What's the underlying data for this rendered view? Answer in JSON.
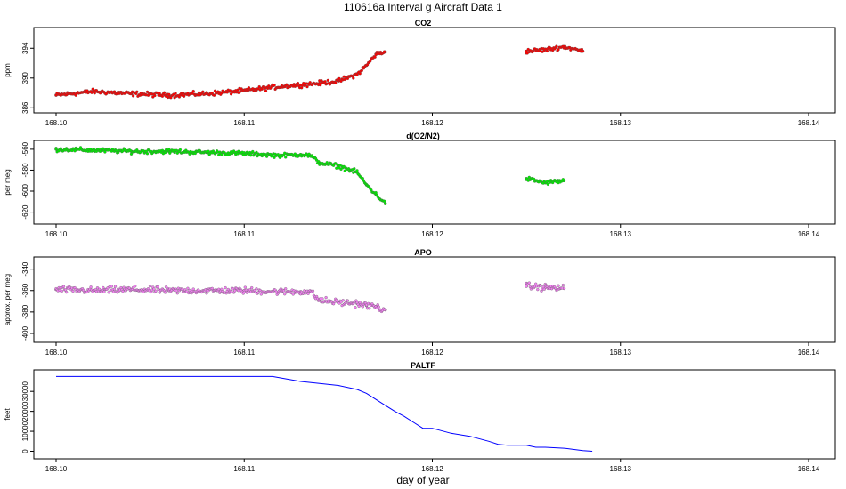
{
  "title": "110616a   Interval g Aircraft Data 1",
  "xlabel": "day of year",
  "x_ticks": [
    "168.10",
    "168.11",
    "168.12",
    "168.13",
    "168.14"
  ],
  "chart_data": [
    {
      "type": "scatter",
      "title": "CO2",
      "ylabel": "ppm",
      "xlim": [
        168.1,
        168.14
      ],
      "ylim": [
        385.8,
        396.3
      ],
      "y_ticks": [
        "386",
        "390",
        "394"
      ],
      "color": "#ff0000",
      "x": [
        168.1,
        168.102,
        168.104,
        168.106,
        168.108,
        168.11,
        168.112,
        168.114,
        168.115,
        168.116,
        168.1165,
        168.117,
        168.1175,
        168.125,
        168.126,
        168.127,
        168.128
      ],
      "values": [
        387.7,
        388.2,
        387.9,
        387.7,
        387.9,
        388.3,
        388.9,
        389.3,
        389.6,
        390.5,
        391.7,
        393.2,
        393.5,
        393.6,
        393.8,
        394.2,
        393.6
      ]
    },
    {
      "type": "scatter",
      "title": "d(O2/N2)",
      "ylabel": "per meg",
      "xlim": [
        168.1,
        168.14
      ],
      "ylim": [
        -628,
        -555
      ],
      "y_ticks": [
        "-620",
        "-600",
        "-580",
        "-560"
      ],
      "color": "#00ee00",
      "x": [
        168.1,
        168.102,
        168.104,
        168.106,
        168.108,
        168.11,
        168.111,
        168.112,
        168.113,
        168.1135,
        168.114,
        168.115,
        168.116,
        168.1165,
        168.117,
        168.1175,
        168.125,
        168.126,
        168.127
      ],
      "values": [
        -560,
        -561,
        -562,
        -562,
        -563,
        -564,
        -565,
        -566,
        -565,
        -566,
        -573,
        -576,
        -582,
        -594,
        -603,
        -612,
        -588,
        -592,
        -590
      ]
    },
    {
      "type": "scatter",
      "title": "APO",
      "ylabel": "approx. per meg",
      "xlim": [
        168.1,
        168.14
      ],
      "ylim": [
        -405,
        -332
      ],
      "y_ticks": [
        "-400",
        "-380",
        "-360",
        "-340"
      ],
      "color": "#ee82ee",
      "x": [
        168.1,
        168.102,
        168.104,
        168.106,
        168.108,
        168.11,
        168.112,
        168.113,
        168.1135,
        168.114,
        168.115,
        168.116,
        168.1165,
        168.117,
        168.1175,
        168.125,
        168.126,
        168.127
      ],
      "values": [
        -359,
        -360,
        -359,
        -360,
        -360,
        -360,
        -361,
        -361,
        -361,
        -369,
        -371,
        -372,
        -374,
        -375,
        -378,
        -356,
        -357,
        -358
      ]
    },
    {
      "type": "line",
      "title": "PALTF",
      "ylabel": "feet",
      "xlim": [
        168.1,
        168.14
      ],
      "ylim": [
        -2000,
        39000
      ],
      "y_ticks": [
        "0",
        "10000",
        "20000",
        "30000"
      ],
      "color": "#0000ff",
      "x": [
        168.1,
        168.105,
        168.1115,
        168.113,
        168.114,
        168.115,
        168.116,
        168.1165,
        168.117,
        168.1175,
        168.118,
        168.1185,
        168.119,
        168.1195,
        168.12,
        168.121,
        168.122,
        168.123,
        168.1235,
        168.124,
        168.125,
        168.1255,
        168.126,
        168.127,
        168.128,
        168.1285
      ],
      "values": [
        37500,
        37500,
        37500,
        35000,
        34000,
        33000,
        31000,
        29000,
        26000,
        23000,
        20000,
        17500,
        14500,
        11500,
        11500,
        9000,
        7500,
        5000,
        3500,
        3000,
        3000,
        2000,
        2000,
        1500,
        300,
        0
      ]
    }
  ]
}
